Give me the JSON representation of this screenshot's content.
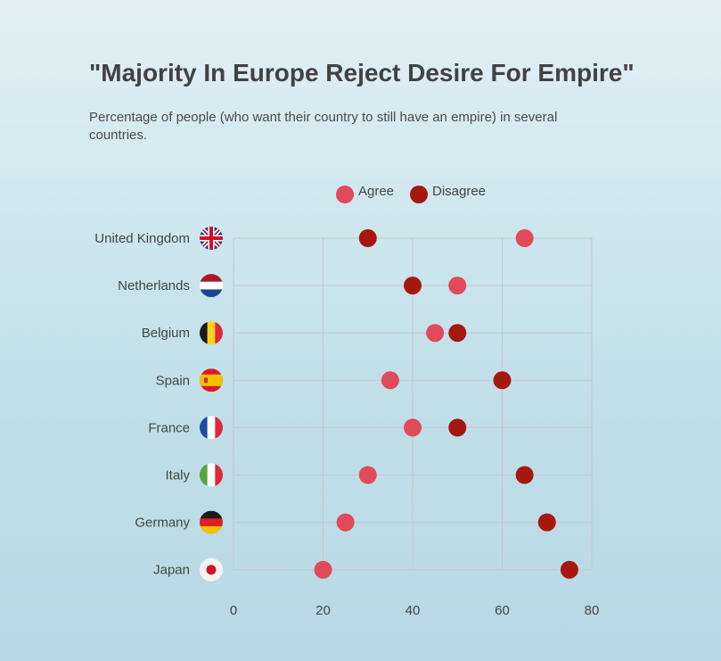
{
  "title": "\"Majority In Europe Reject Desire For Empire\"",
  "subtitle": "Percentage of people (who want their country to still have an empire) in several countries.",
  "chart_data": {
    "type": "scatter",
    "orientation": "horizontal-dumbbell",
    "categories": [
      "United Kingdom",
      "Netherlands",
      "Belgium",
      "Spain",
      "France",
      "Italy",
      "Germany",
      "Japan"
    ],
    "category_flags": [
      "uk-flag-icon",
      "netherlands-flag-icon",
      "belgium-flag-icon",
      "spain-flag-icon",
      "france-flag-icon",
      "italy-flag-icon",
      "germany-flag-icon",
      "japan-flag-icon"
    ],
    "series": [
      {
        "name": "Agree",
        "color": "#e04a5a",
        "values": [
          65,
          50,
          45,
          35,
          40,
          30,
          25,
          20
        ]
      },
      {
        "name": "Disagree",
        "color": "#a5170f",
        "values": [
          30,
          40,
          50,
          60,
          50,
          65,
          70,
          75
        ]
      }
    ],
    "xlim": [
      0,
      80
    ],
    "xticks": [
      0,
      20,
      40,
      60,
      80
    ],
    "grid": true,
    "legend_position": "top-center"
  }
}
